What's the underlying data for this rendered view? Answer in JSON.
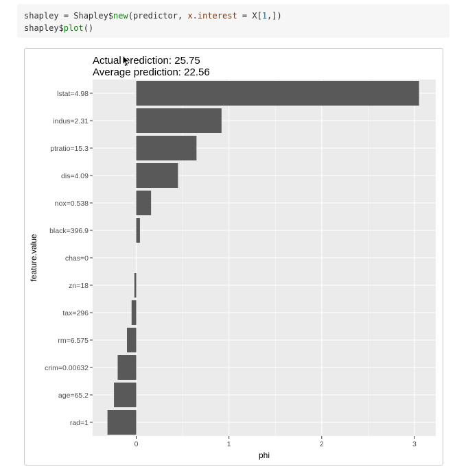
{
  "code": {
    "line1": {
      "t1": "shapley = Shapley$",
      "fn": "new",
      "t2": "(predictor, ",
      "arg": "x.interest",
      "t3": " = X[",
      "num": "1",
      "t4": ",])"
    },
    "line2": {
      "t1": "shapley$",
      "fn": "plot",
      "t2": "()"
    }
  },
  "chart_data": {
    "type": "bar",
    "orientation": "horizontal",
    "title": "Actual prediction: 25.75",
    "subtitle": "Average prediction: 22.56",
    "xlabel": "phi",
    "ylabel": "feature.value",
    "categories": [
      "lstat=4.98",
      "indus=2.31",
      "ptratio=15.3",
      "dis=4.09",
      "nox=0.538",
      "black=396.9",
      "chas=0",
      "zn=18",
      "tax=296",
      "rm=6.575",
      "crim=0.00632",
      "age=65.2",
      "rad=1"
    ],
    "values": [
      3.05,
      0.92,
      0.65,
      0.45,
      0.16,
      0.04,
      0.0,
      -0.02,
      -0.05,
      -0.1,
      -0.2,
      -0.24,
      -0.31
    ],
    "xlim": [
      -0.47,
      3.23
    ],
    "xticks": [
      "0",
      "1",
      "2",
      "3"
    ],
    "grid": true,
    "colors": {
      "bar": "#595959",
      "panel": "#ebebeb",
      "grid": "#ffffff",
      "text": "#4d4d4d"
    }
  }
}
